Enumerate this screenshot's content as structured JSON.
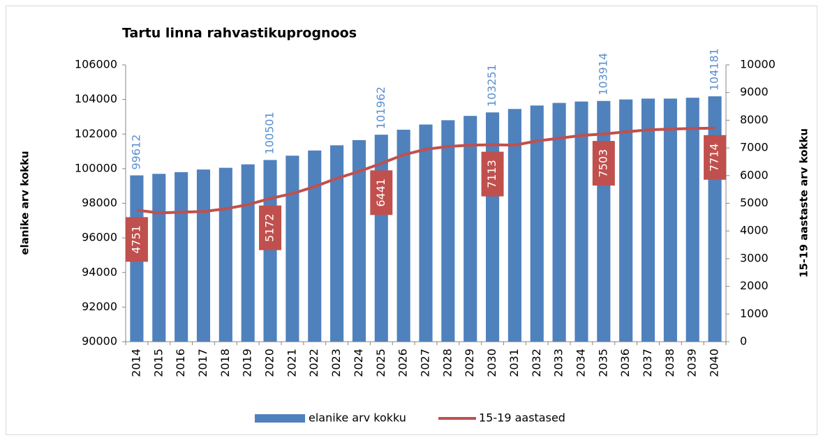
{
  "chart_data": {
    "type": "bar",
    "title": "Tartu linna rahvastikuprognoos",
    "ylabel": "elanike arv kokku",
    "y2label": "15-19 aastaste arv kokku",
    "categories": [
      "2014",
      "2015",
      "2016",
      "2017",
      "2018",
      "2019",
      "2020",
      "2021",
      "2022",
      "2023",
      "2024",
      "2025",
      "2026",
      "2027",
      "2028",
      "2029",
      "2030",
      "2031",
      "2032",
      "2033",
      "2034",
      "2035",
      "2036",
      "2037",
      "2038",
      "2039",
      "2040"
    ],
    "series": [
      {
        "name": "elanike arv kokku",
        "type": "bar",
        "color": "#4f81bd",
        "values": [
          99612,
          99700,
          99800,
          99950,
          100050,
          100250,
          100501,
          100750,
          101050,
          101350,
          101650,
          101962,
          102250,
          102550,
          102800,
          103050,
          103251,
          103450,
          103650,
          103800,
          103880,
          103914,
          104000,
          104050,
          104050,
          104100,
          104181
        ],
        "value_labels": [
          "99612",
          null,
          null,
          null,
          null,
          null,
          "100501",
          null,
          null,
          null,
          null,
          "101962",
          null,
          null,
          null,
          null,
          "103251",
          null,
          null,
          null,
          null,
          "103914",
          null,
          null,
          null,
          null,
          "104181"
        ]
      },
      {
        "name": "15-19 aastased",
        "type": "line",
        "axis": "y2",
        "color": "#c0504d",
        "values": [
          4751,
          4650,
          4680,
          4700,
          4800,
          4950,
          5172,
          5350,
          5600,
          5900,
          6150,
          6441,
          6750,
          6950,
          7050,
          7100,
          7113,
          7100,
          7250,
          7350,
          7450,
          7503,
          7580,
          7650,
          7680,
          7700,
          7714
        ],
        "value_labels": [
          "4751",
          null,
          null,
          null,
          null,
          null,
          "5172",
          null,
          null,
          null,
          null,
          "6441",
          null,
          null,
          null,
          null,
          "7113",
          null,
          null,
          null,
          null,
          "7503",
          null,
          null,
          null,
          null,
          "7714"
        ]
      }
    ],
    "ylim": [
      90000,
      106000
    ],
    "yticks": [
      90000,
      92000,
      94000,
      96000,
      98000,
      100000,
      102000,
      104000,
      106000
    ],
    "y2lim": [
      0,
      10000
    ],
    "y2ticks": [
      0,
      1000,
      2000,
      3000,
      4000,
      5000,
      6000,
      7000,
      8000,
      9000,
      10000
    ],
    "legend": "bottom"
  }
}
